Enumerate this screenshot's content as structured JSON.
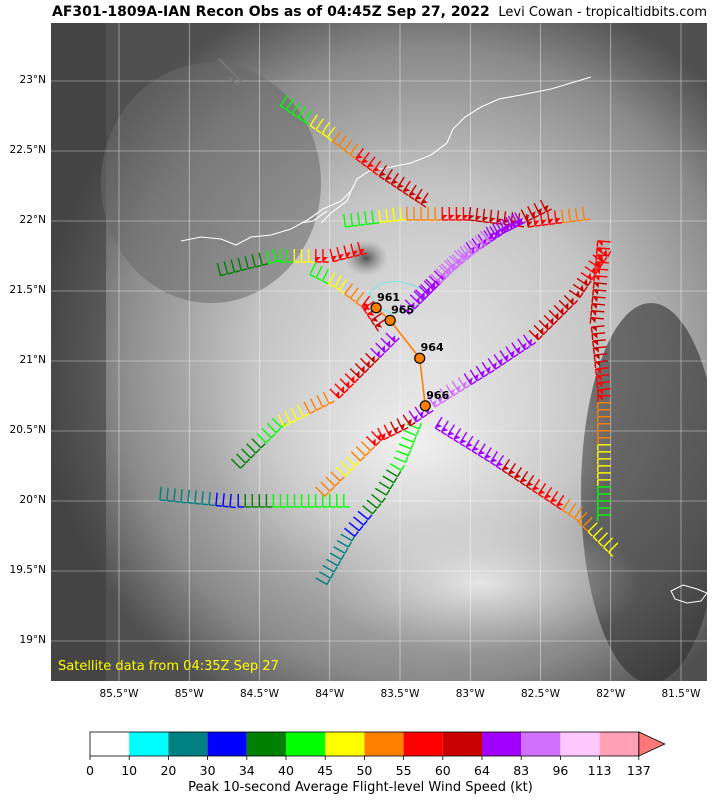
{
  "header": {
    "title": "AF301-1809A-IAN Recon Obs as of 04:45Z Sep 27, 2022",
    "credit": "Levi Cowan - tropicaltidbits.com"
  },
  "map": {
    "lat_ticks": [
      "23°N",
      "22.5°N",
      "22°N",
      "21.5°N",
      "21°N",
      "20.5°N",
      "20°N",
      "19.5°N",
      "19°N"
    ],
    "lon_ticks": [
      "85.5°W",
      "85°W",
      "84.5°W",
      "84°W",
      "83.5°W",
      "83°W",
      "82.5°W",
      "82°W",
      "81.5°W"
    ],
    "satellite_note": "Satellite data from 04:35Z Sep 27",
    "pressure_obs": [
      {
        "label": "961",
        "lat": 21.38,
        "lon": -83.67
      },
      {
        "label": "965",
        "lat": 21.29,
        "lon": -83.57
      },
      {
        "label": "964",
        "lat": 21.02,
        "lon": -83.36
      },
      {
        "label": "966",
        "lat": 20.68,
        "lon": -83.32
      }
    ],
    "colors": {
      "coast": "#ffffff",
      "grid": "#ffffff",
      "track": "#ff8000"
    }
  },
  "colorbar": {
    "ticks": [
      "0",
      "10",
      "20",
      "30",
      "34",
      "40",
      "45",
      "50",
      "55",
      "60",
      "64",
      "83",
      "96",
      "113",
      "137"
    ],
    "colors": [
      "#ffffff",
      "#00ffff",
      "#008080",
      "#0000ff",
      "#008000",
      "#00ff00",
      "#ffff00",
      "#ff8000",
      "#ff0000",
      "#c80000",
      "#a000ff",
      "#d070ff",
      "#ffc8ff",
      "#ffa0b4"
    ],
    "extend_color": "#ff7878",
    "label": "Peak 10-second Average Flight-level Wind Speed (kt)"
  }
}
